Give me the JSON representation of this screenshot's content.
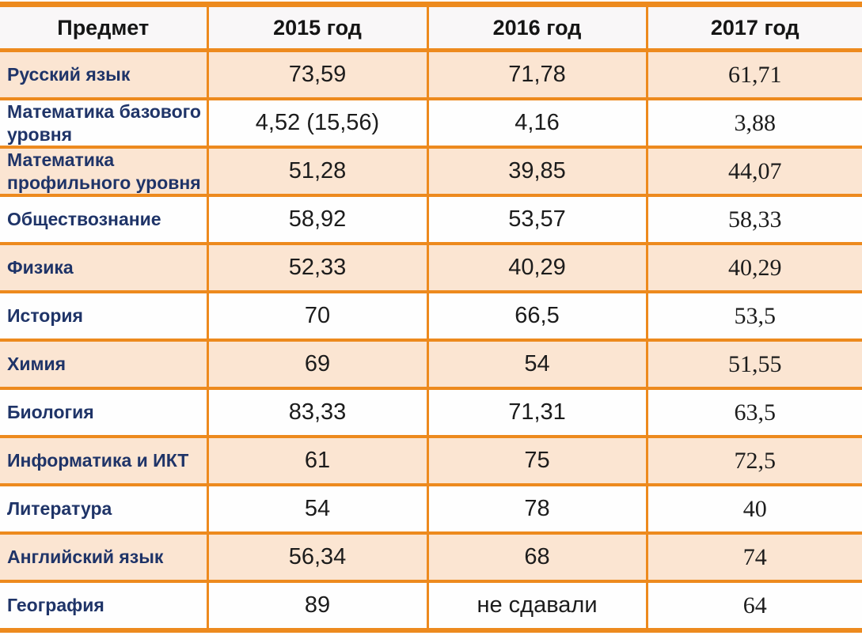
{
  "chart_data": {
    "type": "table",
    "columns": [
      "Предмет",
      "2015 год",
      "2016 год",
      "2017 год"
    ],
    "rows": [
      [
        "Русский язык",
        "73,59",
        "71,78",
        "61,71"
      ],
      [
        "Математика базового уровня",
        "4,52 (15,56)",
        "4,16",
        "3,88"
      ],
      [
        "Математика профильного уровня",
        "51,28",
        "39,85",
        "44,07"
      ],
      [
        "Обществознание",
        "58,92",
        "53,57",
        "58,33"
      ],
      [
        "Физика",
        "52,33",
        "40,29",
        "40,29"
      ],
      [
        "История",
        "70",
        "66,5",
        "53,5"
      ],
      [
        "Химия",
        "69",
        "54",
        "51,55"
      ],
      [
        "Биология",
        "83,33",
        "71,31",
        "63,5"
      ],
      [
        "Информатика и ИКТ",
        "61",
        "75",
        "72,5"
      ],
      [
        "Литература",
        "54",
        "78",
        "40"
      ],
      [
        "Английский язык",
        "56,34",
        "68",
        "74"
      ],
      [
        "География",
        "89",
        "не сдавали",
        "64"
      ]
    ],
    "notes": "Ячейка 2016 года для географии содержит текст «не сдавали»; строки чередуют персиковый и белый фон; значения 2017 года набраны шрифтом с засечками"
  },
  "colors": {
    "grid_orange": "#ED8A1E",
    "row_peach": "#FBE5D2",
    "row_white": "#FEFEFE",
    "header_bg": "#F9F7F8",
    "subject_navy": "#1F3468",
    "value_text": "#1C1C1C"
  }
}
